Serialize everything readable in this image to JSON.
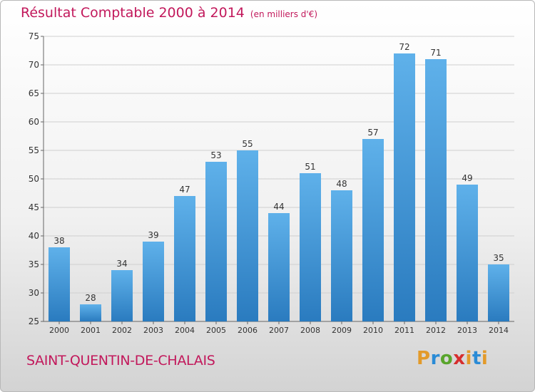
{
  "header": {
    "title": "Résultat Comptable 2000 à 2014",
    "unit": "(en milliers d'€)"
  },
  "footer": {
    "commune": "SAINT-QUENTIN-DE-CHALAIS",
    "logo": "Proxiti"
  },
  "colors": {
    "title": "#c2185b",
    "bar_top": "#5fb1ea",
    "bar_bottom": "#2a7bbf"
  },
  "chart_data": {
    "type": "bar",
    "categories": [
      "2000",
      "2001",
      "2002",
      "2003",
      "2004",
      "2005",
      "2006",
      "2007",
      "2008",
      "2009",
      "2010",
      "2011",
      "2012",
      "2013",
      "2014"
    ],
    "values": [
      38,
      28,
      34,
      39,
      47,
      53,
      55,
      44,
      51,
      48,
      57,
      72,
      71,
      49,
      35
    ],
    "ylim": [
      25,
      75
    ],
    "yticks": [
      25,
      30,
      35,
      40,
      45,
      50,
      55,
      60,
      65,
      70,
      75
    ],
    "grid": true,
    "title": "Résultat Comptable 2000 à 2014",
    "xlabel": "",
    "ylabel": ""
  }
}
